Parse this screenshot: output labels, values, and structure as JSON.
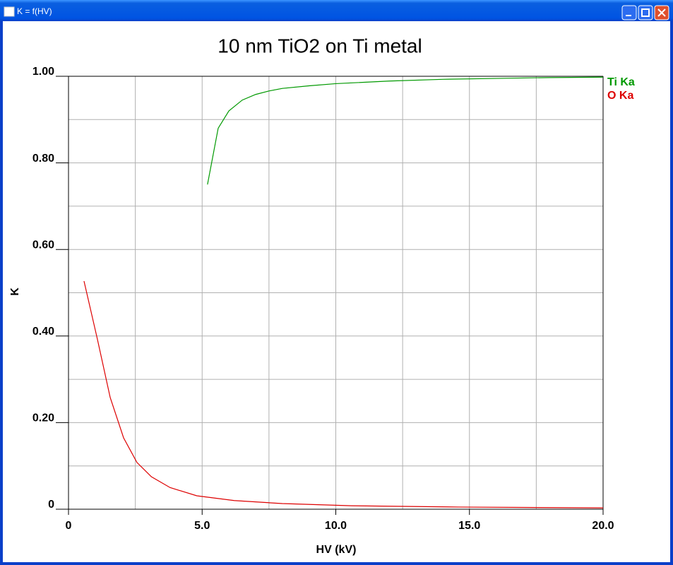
{
  "window": {
    "title": "K = f(HV)"
  },
  "chart_data": {
    "type": "line",
    "title": "10 nm TiO2 on Ti metal",
    "x_label": "HV (kV)",
    "y_label": "K",
    "xlim": [
      0,
      20
    ],
    "ylim": [
      0,
      1
    ],
    "xticks": [
      0,
      {
        "value": 5,
        "label": "5.0"
      },
      {
        "value": 10,
        "label": "10.0"
      },
      {
        "value": 15,
        "label": "15.0"
      },
      {
        "value": 20,
        "label": "20.0"
      }
    ],
    "yticks": [
      0,
      {
        "value": 0.2,
        "label": "0.20"
      },
      {
        "value": 0.4,
        "label": "0.40"
      },
      {
        "value": 0.6,
        "label": "0.60"
      },
      {
        "value": 0.8,
        "label": "0.80"
      },
      {
        "value": 1,
        "label": "1.00"
      }
    ],
    "xgrid": [
      2.5,
      7.5,
      12.5,
      17.5
    ],
    "ygrid": [
      0.1,
      0.3,
      0.5,
      0.7,
      0.9
    ],
    "grid": true,
    "legend": "top-right",
    "series": [
      {
        "name": "Ti Ka",
        "color": "#009900",
        "x": [
          5.2,
          5.6,
          6,
          6.5,
          7,
          7.5,
          8,
          9,
          10,
          12,
          14,
          16,
          18,
          20
        ],
        "values": [
          0.75,
          0.88,
          0.92,
          0.945,
          0.958,
          0.966,
          0.972,
          0.978,
          0.983,
          0.989,
          0.993,
          0.995,
          0.997,
          0.998
        ]
      },
      {
        "name": "O Ka",
        "color": "#dd0000",
        "x": [
          0.58,
          1.08,
          1.56,
          2.06,
          2.56,
          3.1,
          3.8,
          4.8,
          6.2,
          8,
          10.6,
          14.6,
          20
        ],
        "values": [
          0.527,
          0.393,
          0.258,
          0.165,
          0.108,
          0.075,
          0.05,
          0.031,
          0.02,
          0.013,
          0.008,
          0.005,
          0.003
        ]
      }
    ]
  }
}
